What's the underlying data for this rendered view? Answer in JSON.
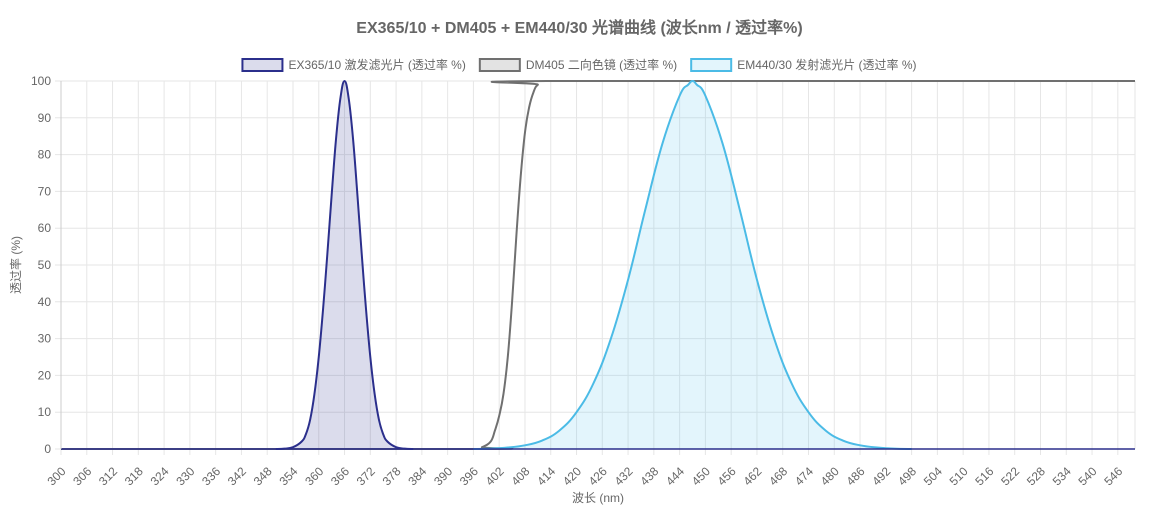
{
  "chart_data": {
    "type": "area",
    "title": "EX365/10 + DM405 + EM440/30 光谱曲线 (波长nm / 透过率%)",
    "xlabel": "波长 (nm)",
    "ylabel": "透过率 (%)",
    "xlim": [
      300,
      550
    ],
    "ylim": [
      0,
      100
    ],
    "x_ticks": [
      300,
      306,
      312,
      318,
      324,
      330,
      336,
      342,
      348,
      354,
      360,
      366,
      372,
      378,
      384,
      390,
      396,
      402,
      408,
      414,
      420,
      426,
      432,
      438,
      444,
      450,
      456,
      462,
      468,
      474,
      480,
      486,
      492,
      498,
      504,
      510,
      516,
      522,
      528,
      534,
      540,
      546
    ],
    "y_ticks": [
      0,
      10,
      20,
      30,
      40,
      50,
      60,
      70,
      80,
      90,
      100
    ],
    "grid": true,
    "legend_position": "top",
    "series": [
      {
        "name": "EX365/10 激发滤光片 (透过率 %)",
        "color": "#2b2f8c",
        "fill": "rgba(43,47,140,0.17)",
        "filled": true,
        "points": [
          [
            350,
            0
          ],
          [
            352,
            0.1
          ],
          [
            354,
            0.5
          ],
          [
            356,
            2
          ],
          [
            357,
            4
          ],
          [
            358,
            8
          ],
          [
            359,
            15
          ],
          [
            360,
            25
          ],
          [
            361,
            38
          ],
          [
            362,
            53
          ],
          [
            363,
            69
          ],
          [
            364,
            84
          ],
          [
            365,
            95
          ],
          [
            366,
            100
          ],
          [
            367,
            95
          ],
          [
            368,
            84
          ],
          [
            369,
            69
          ],
          [
            370,
            53
          ],
          [
            371,
            38
          ],
          [
            372,
            25
          ],
          [
            373,
            15
          ],
          [
            374,
            8
          ],
          [
            375,
            4
          ],
          [
            376,
            2
          ],
          [
            378,
            0.5
          ],
          [
            380,
            0.1
          ],
          [
            382,
            0
          ]
        ]
      },
      {
        "name": "DM405 二向色镜 (透过率 %)",
        "color": "#707070",
        "fill": "rgba(200,200,200,0.5)",
        "filled": false,
        "points": [
          [
            300,
            0
          ],
          [
            396,
            0
          ],
          [
            398,
            0.5
          ],
          [
            400,
            2
          ],
          [
            401,
            5
          ],
          [
            402,
            9
          ],
          [
            403,
            15
          ],
          [
            404,
            25
          ],
          [
            405,
            40
          ],
          [
            406,
            58
          ],
          [
            407,
            74
          ],
          [
            408,
            86
          ],
          [
            409,
            93
          ],
          [
            410,
            97
          ],
          [
            411,
            99
          ],
          [
            413,
            100
          ],
          [
            550,
            100
          ]
        ]
      },
      {
        "name": "EM440/30 发射滤光片 (透过率 %)",
        "color": "#4bbbe6",
        "fill": "rgba(91,195,235,0.17)",
        "filled": true,
        "points": [
          [
            396,
            0
          ],
          [
            400,
            0.1
          ],
          [
            404,
            0.4
          ],
          [
            408,
            1
          ],
          [
            412,
            2.3
          ],
          [
            416,
            5
          ],
          [
            420,
            10
          ],
          [
            424,
            18
          ],
          [
            428,
            30
          ],
          [
            432,
            46
          ],
          [
            436,
            65
          ],
          [
            440,
            83
          ],
          [
            444,
            96
          ],
          [
            446,
            99
          ],
          [
            447,
            100
          ],
          [
            448,
            99
          ],
          [
            450,
            96
          ],
          [
            454,
            83
          ],
          [
            458,
            65
          ],
          [
            462,
            46
          ],
          [
            466,
            30
          ],
          [
            470,
            18
          ],
          [
            474,
            10
          ],
          [
            478,
            5
          ],
          [
            482,
            2.3
          ],
          [
            486,
            1
          ],
          [
            490,
            0.4
          ],
          [
            494,
            0.1
          ],
          [
            498,
            0
          ]
        ]
      }
    ]
  }
}
